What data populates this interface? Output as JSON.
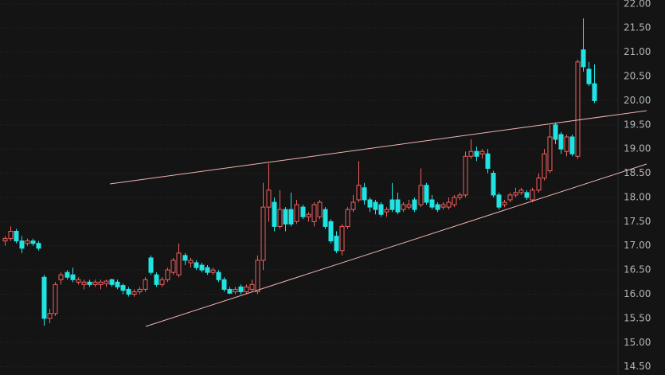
{
  "chart_data": {
    "type": "candlestick",
    "open": [
      17.1,
      17.15,
      17.3,
      17.1,
      17.05,
      17.1,
      17.05,
      16.35,
      15.5,
      15.6,
      16.3,
      16.45,
      16.4,
      16.25,
      16.2,
      16.25,
      16.2,
      16.2,
      16.22,
      16.3,
      16.25,
      16.18,
      16.1,
      16.0,
      16.05,
      16.1,
      16.75,
      16.4,
      16.2,
      16.3,
      16.45,
      16.4,
      16.8,
      16.65,
      16.65,
      16.6,
      16.55,
      16.45,
      16.45,
      16.3,
      16.1,
      16.05,
      16.15,
      16.05,
      16.1,
      16.05,
      16.7,
      17.8,
      17.9,
      17.4,
      17.75,
      17.75,
      17.5,
      17.8,
      17.6,
      17.5,
      17.6,
      17.75,
      17.5,
      17.2,
      16.9,
      17.4,
      17.75,
      17.95,
      18.2,
      17.95,
      17.9,
      17.85,
      17.7,
      17.95,
      17.95,
      17.75,
      17.8,
      17.95,
      17.85,
      18.25,
      17.95,
      17.85,
      17.8,
      17.8,
      17.85,
      18.0,
      18.05,
      18.85,
      18.95,
      18.9,
      18.9,
      18.5,
      18.05,
      17.85,
      17.95,
      18.05,
      18.1,
      18.1,
      17.95,
      18.15,
      18.4,
      18.55,
      19.5,
      19.3,
      18.95,
      19.25,
      18.85,
      21.05,
      20.65,
      20.35
    ],
    "high": [
      17.2,
      17.4,
      17.35,
      17.2,
      17.15,
      17.15,
      17.1,
      16.4,
      15.7,
      16.25,
      16.45,
      16.5,
      16.55,
      16.35,
      16.3,
      16.3,
      16.3,
      16.3,
      16.3,
      16.32,
      16.3,
      16.22,
      16.15,
      16.1,
      16.15,
      16.35,
      16.8,
      16.45,
      16.35,
      16.55,
      16.75,
      17.05,
      16.85,
      16.75,
      16.7,
      16.65,
      16.6,
      16.55,
      16.5,
      16.35,
      16.15,
      16.15,
      16.2,
      16.2,
      16.3,
      16.8,
      18.3,
      18.7,
      18.0,
      18.15,
      17.8,
      18.1,
      17.95,
      17.85,
      17.7,
      17.9,
      17.95,
      17.8,
      17.55,
      17.3,
      17.45,
      17.8,
      18.05,
      18.75,
      18.3,
      18.0,
      17.95,
      17.9,
      17.8,
      18.3,
      18.1,
      17.9,
      17.95,
      18.0,
      18.6,
      18.3,
      18.05,
      17.9,
      17.9,
      18.0,
      18.05,
      18.1,
      18.95,
      19.2,
      19.05,
      19.0,
      19.0,
      18.55,
      18.1,
      17.95,
      18.1,
      18.2,
      18.2,
      18.15,
      18.2,
      18.5,
      19.0,
      19.5,
      19.55,
      19.35,
      19.3,
      19.3,
      20.85,
      21.7,
      20.8,
      20.75
    ],
    "low": [
      17.0,
      17.1,
      17.05,
      16.85,
      17.0,
      17.0,
      16.9,
      15.35,
      15.4,
      15.55,
      16.2,
      16.3,
      16.25,
      16.2,
      16.1,
      16.15,
      16.15,
      16.1,
      16.15,
      16.15,
      16.1,
      16.0,
      15.95,
      15.95,
      16.0,
      16.05,
      16.4,
      16.15,
      16.15,
      16.25,
      16.4,
      16.35,
      16.6,
      16.55,
      16.5,
      16.45,
      16.4,
      16.4,
      16.25,
      16.05,
      16.0,
      16.0,
      16.0,
      16.0,
      16.05,
      16.0,
      16.5,
      17.5,
      17.3,
      17.35,
      17.3,
      17.4,
      17.45,
      17.55,
      17.5,
      17.4,
      17.55,
      17.35,
      17.05,
      16.85,
      16.8,
      17.35,
      17.7,
      17.9,
      17.85,
      17.7,
      17.65,
      17.6,
      17.6,
      17.7,
      17.65,
      17.7,
      17.75,
      17.7,
      17.8,
      17.85,
      17.75,
      17.7,
      17.75,
      17.75,
      17.8,
      17.95,
      18.0,
      18.8,
      18.75,
      18.8,
      18.5,
      18.0,
      17.75,
      17.8,
      17.9,
      18.0,
      18.05,
      17.95,
      17.9,
      18.1,
      18.35,
      18.5,
      19.1,
      18.9,
      18.85,
      18.85,
      18.8,
      20.6,
      20.3,
      19.95
    ],
    "close": [
      17.15,
      17.3,
      17.1,
      16.95,
      17.1,
      17.05,
      16.95,
      15.5,
      15.6,
      16.2,
      16.4,
      16.35,
      16.3,
      16.3,
      16.25,
      16.2,
      16.25,
      16.25,
      16.27,
      16.2,
      16.15,
      16.08,
      16.0,
      16.05,
      16.1,
      16.3,
      16.45,
      16.2,
      16.3,
      16.5,
      16.7,
      16.85,
      16.7,
      16.7,
      16.55,
      16.5,
      16.45,
      16.5,
      16.3,
      16.1,
      16.02,
      16.1,
      16.05,
      16.15,
      16.2,
      16.7,
      17.8,
      18.15,
      17.4,
      17.75,
      17.45,
      17.45,
      17.85,
      17.6,
      17.65,
      17.85,
      17.9,
      17.4,
      17.1,
      16.9,
      17.4,
      17.75,
      17.9,
      18.25,
      17.95,
      17.8,
      17.75,
      17.65,
      17.75,
      17.75,
      17.7,
      17.85,
      17.85,
      17.75,
      18.25,
      17.9,
      17.8,
      17.75,
      17.85,
      17.9,
      18.0,
      18.05,
      18.85,
      18.95,
      18.85,
      18.95,
      18.6,
      18.05,
      17.8,
      17.9,
      18.05,
      18.1,
      18.15,
      18.0,
      18.15,
      18.4,
      18.9,
      19.25,
      19.2,
      19.0,
      19.25,
      18.9,
      20.8,
      20.7,
      20.35,
      20.0
    ],
    "up_color": "#f0605e",
    "down_color": "#22e3e3",
    "grid": true,
    "ylim": [
      14.33,
      22.08
    ],
    "yticks": [
      {
        "value": 14.5,
        "label": "14.50"
      },
      {
        "value": 15,
        "label": "15.00"
      },
      {
        "value": 15.5,
        "label": "15.50"
      },
      {
        "value": 16,
        "label": "16.00"
      },
      {
        "value": 16.5,
        "label": "16.50"
      },
      {
        "value": 17,
        "label": "17.00"
      },
      {
        "value": 17.5,
        "label": "17.50"
      },
      {
        "value": 18,
        "label": "18.00"
      },
      {
        "value": 18.5,
        "label": "18.50"
      },
      {
        "value": 19,
        "label": "19.00"
      },
      {
        "value": 19.5,
        "label": "19.50"
      },
      {
        "value": 20,
        "label": "20.00"
      },
      {
        "value": 20.5,
        "label": "20.50"
      },
      {
        "value": 21,
        "label": "21.00"
      },
      {
        "value": 21.5,
        "label": "21.50"
      },
      {
        "value": 22,
        "label": "22.00"
      }
    ]
  }
}
